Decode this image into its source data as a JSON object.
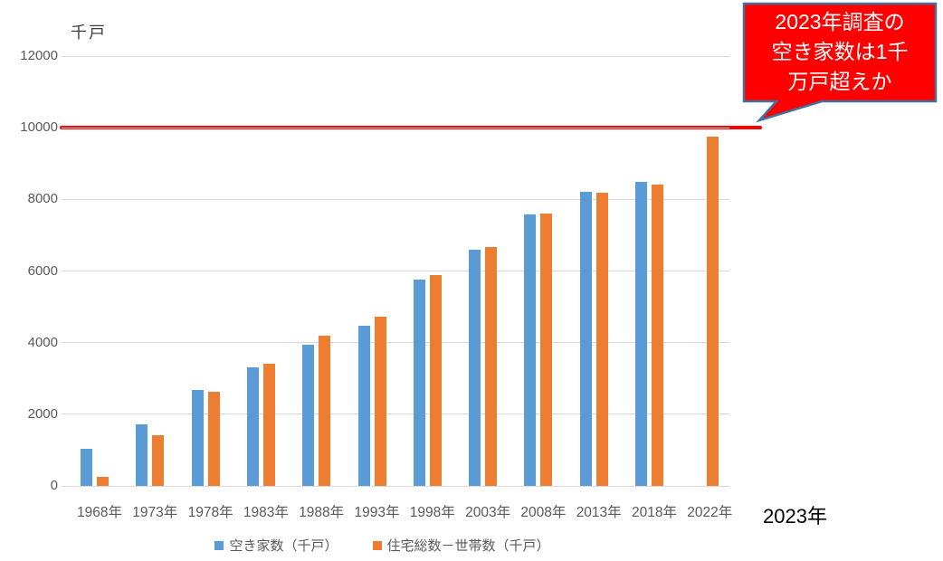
{
  "chart_data": {
    "type": "bar",
    "title": "",
    "ylabel": "千戸",
    "xlabel": "",
    "categories": [
      "1968年",
      "1973年",
      "1978年",
      "1983年",
      "1988年",
      "1993年",
      "1998年",
      "2003年",
      "2008年",
      "2013年",
      "2018年",
      "2022年"
    ],
    "series": [
      {
        "name": "空き家数（千戸）",
        "color": "#5B9BD5",
        "values": [
          1030,
          1720,
          2680,
          3300,
          3940,
          4480,
          5760,
          6590,
          7570,
          8200,
          8490,
          null
        ]
      },
      {
        "name": "住宅総数－世帯数（千戸）",
        "color": "#ED7D31",
        "values": [
          250,
          1410,
          2620,
          3410,
          4200,
          4720,
          5890,
          6660,
          7610,
          8180,
          8410,
          9740
        ]
      }
    ],
    "ylim": [
      0,
      12000
    ],
    "yticks": [
      0,
      2000,
      4000,
      6000,
      8000,
      10000,
      12000
    ],
    "grid": true,
    "legend_position": "bottom",
    "extra_x_label": "2023年",
    "reference_line": {
      "value": 10000,
      "color": "#FF0000"
    }
  },
  "callout": {
    "text": "2023年調査の空き家数は1千万戸超えか",
    "lines": [
      "2023年調査の",
      "空き家数は1千",
      "万戸超えか"
    ],
    "fill": "#FF0000",
    "border_color": "#41719C",
    "text_color": "#FFFFFF"
  },
  "colors": {
    "gridline": "#D9D9D9",
    "tick_text": "#595959",
    "axis_title": "#404040"
  }
}
